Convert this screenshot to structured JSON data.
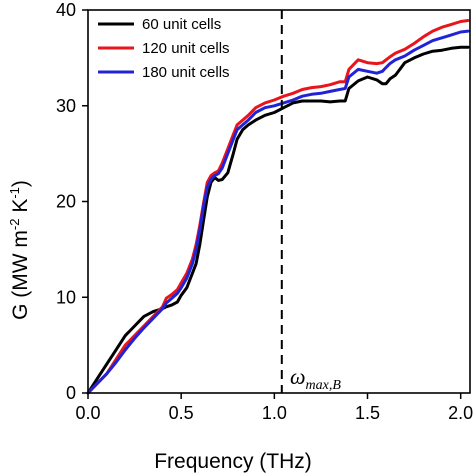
{
  "chart_data": {
    "type": "line",
    "xlabel": "Frequency (THz)",
    "ylabel": {
      "base": "G (MW m",
      "exp1": "-2",
      "mid": " K",
      "exp2": "-1",
      "end": ")"
    },
    "xlim": [
      0,
      2.05
    ],
    "ylim": [
      0,
      40
    ],
    "xticks": [
      0.0,
      0.5,
      1.0,
      1.5,
      2.0
    ],
    "xtick_labels": [
      "0.0",
      "0.5",
      "1.0",
      "1.5",
      "2.0"
    ],
    "yticks": [
      0,
      10,
      20,
      30,
      40
    ],
    "ytick_labels": [
      "0",
      "10",
      "20",
      "30",
      "40"
    ],
    "grid": false,
    "legend_position": "top-left",
    "vline": {
      "x": 1.04,
      "style": "dashed",
      "label": {
        "main": "ω",
        "sub": "max,B"
      }
    },
    "series": [
      {
        "name": "60 unit cells",
        "color": "#000000",
        "x": [
          0.0,
          0.05,
          0.1,
          0.15,
          0.2,
          0.25,
          0.3,
          0.35,
          0.4,
          0.42,
          0.45,
          0.48,
          0.5,
          0.53,
          0.56,
          0.58,
          0.6,
          0.62,
          0.64,
          0.66,
          0.68,
          0.7,
          0.72,
          0.75,
          0.78,
          0.8,
          0.83,
          0.86,
          0.9,
          0.95,
          1.0,
          1.05,
          1.1,
          1.15,
          1.2,
          1.25,
          1.3,
          1.35,
          1.38,
          1.4,
          1.45,
          1.5,
          1.55,
          1.58,
          1.6,
          1.62,
          1.65,
          1.7,
          1.75,
          1.8,
          1.85,
          1.9,
          1.95,
          2.0,
          2.04
        ],
        "y": [
          0.0,
          1.5,
          3.0,
          4.5,
          6.0,
          7.0,
          8.0,
          8.5,
          8.8,
          9.0,
          9.2,
          9.5,
          10.2,
          11.0,
          12.5,
          13.5,
          15.5,
          18.0,
          20.5,
          22.0,
          22.5,
          22.2,
          22.3,
          23.0,
          25.0,
          26.5,
          27.5,
          28.0,
          28.5,
          29.0,
          29.3,
          29.8,
          30.3,
          30.5,
          30.5,
          30.5,
          30.4,
          30.5,
          30.5,
          31.8,
          32.6,
          33.0,
          32.7,
          32.3,
          32.3,
          32.8,
          33.2,
          34.5,
          35.0,
          35.4,
          35.7,
          35.8,
          36.0,
          36.1,
          36.1
        ]
      },
      {
        "name": "120 unit cells",
        "color": "#e8151b",
        "x": [
          0.0,
          0.05,
          0.1,
          0.15,
          0.2,
          0.25,
          0.3,
          0.35,
          0.4,
          0.42,
          0.45,
          0.48,
          0.5,
          0.53,
          0.56,
          0.58,
          0.6,
          0.62,
          0.64,
          0.66,
          0.68,
          0.7,
          0.72,
          0.75,
          0.78,
          0.8,
          0.83,
          0.86,
          0.9,
          0.95,
          1.0,
          1.05,
          1.1,
          1.15,
          1.2,
          1.25,
          1.3,
          1.35,
          1.38,
          1.4,
          1.45,
          1.5,
          1.55,
          1.58,
          1.6,
          1.62,
          1.65,
          1.7,
          1.75,
          1.8,
          1.85,
          1.9,
          1.95,
          2.0,
          2.04
        ],
        "y": [
          0.0,
          1.0,
          2.0,
          3.5,
          5.0,
          6.0,
          7.0,
          8.0,
          9.0,
          9.9,
          10.3,
          10.8,
          11.5,
          12.5,
          14.0,
          15.5,
          17.5,
          19.8,
          22.0,
          22.7,
          23.0,
          23.2,
          24.0,
          25.5,
          27.0,
          28.0,
          28.5,
          29.0,
          29.8,
          30.3,
          30.6,
          31.0,
          31.3,
          31.7,
          31.9,
          32.0,
          32.2,
          32.5,
          32.5,
          33.8,
          34.8,
          34.5,
          34.4,
          34.5,
          34.8,
          35.1,
          35.5,
          35.9,
          36.5,
          37.2,
          37.8,
          38.2,
          38.5,
          38.8,
          38.9
        ]
      },
      {
        "name": "180 unit cells",
        "color": "#2323d6",
        "x": [
          0.0,
          0.05,
          0.1,
          0.15,
          0.2,
          0.25,
          0.3,
          0.35,
          0.4,
          0.42,
          0.45,
          0.48,
          0.5,
          0.53,
          0.56,
          0.58,
          0.6,
          0.62,
          0.64,
          0.66,
          0.68,
          0.7,
          0.72,
          0.75,
          0.78,
          0.8,
          0.83,
          0.86,
          0.9,
          0.95,
          1.0,
          1.05,
          1.1,
          1.15,
          1.2,
          1.25,
          1.3,
          1.35,
          1.38,
          1.4,
          1.45,
          1.5,
          1.55,
          1.58,
          1.6,
          1.62,
          1.65,
          1.7,
          1.75,
          1.8,
          1.85,
          1.9,
          1.95,
          2.0,
          2.04
        ],
        "y": [
          0.0,
          1.0,
          2.0,
          3.2,
          4.5,
          5.7,
          6.8,
          7.8,
          8.8,
          9.4,
          9.9,
          10.4,
          11.0,
          12.0,
          13.5,
          15.0,
          17.0,
          19.5,
          21.5,
          22.3,
          22.7,
          22.9,
          23.5,
          25.0,
          26.5,
          27.5,
          28.0,
          28.5,
          29.3,
          29.8,
          30.0,
          30.3,
          30.6,
          31.0,
          31.2,
          31.3,
          31.5,
          31.7,
          31.8,
          33.0,
          33.8,
          33.6,
          33.4,
          33.6,
          34.0,
          34.4,
          34.8,
          35.2,
          35.8,
          36.3,
          36.8,
          37.1,
          37.4,
          37.7,
          37.8
        ]
      }
    ]
  }
}
